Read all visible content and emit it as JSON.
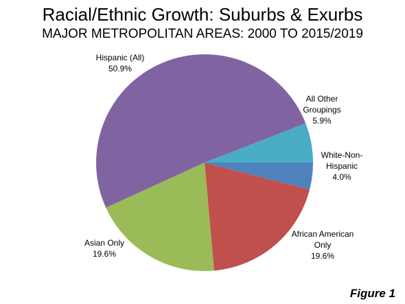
{
  "chart_data": {
    "type": "pie",
    "title": "Racial/Ethnic Growth: Suburbs & Exurbs",
    "subtitle": "MAJOR METROPOLITAN AREAS: 2000 TO 2015/2019",
    "start_angle_deg": 0,
    "direction": "clockwise",
    "slices": [
      {
        "label_lines": [
          "White-Non-",
          "Hispanic"
        ],
        "value": 4.0,
        "value_label": "4.0%",
        "color": "#4f81bd"
      },
      {
        "label_lines": [
          "African American",
          "Only"
        ],
        "value": 19.6,
        "value_label": "19.6%",
        "color": "#c0504d"
      },
      {
        "label_lines": [
          "Asian Only"
        ],
        "value": 19.6,
        "value_label": "19.6%",
        "color": "#9bbb59"
      },
      {
        "label_lines": [
          "Hispanic (All)"
        ],
        "value": 50.9,
        "value_label": "50.9%",
        "color": "#8064a2"
      },
      {
        "label_lines": [
          "All Other",
          "Groupings"
        ],
        "value": 5.9,
        "value_label": "5.9%",
        "color": "#4bacc6"
      }
    ]
  },
  "figure_label": "Figure 1"
}
